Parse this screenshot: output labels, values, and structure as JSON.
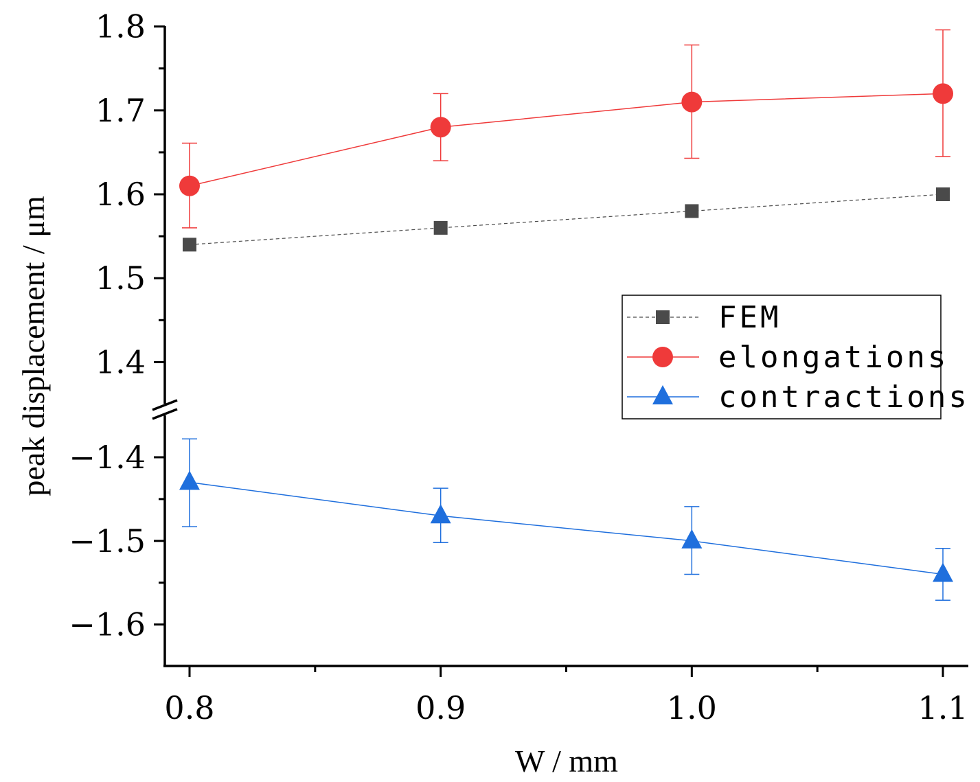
{
  "chart_data": {
    "type": "line",
    "xlabel": "W / mm",
    "ylabel": "peak displacement / μm",
    "x": [
      0.8,
      0.9,
      1.0,
      1.1
    ],
    "x_tick_labels": [
      "0.8",
      "0.9",
      "1.0",
      "1.1"
    ],
    "xlim": [
      0.79,
      1.11
    ],
    "y_axis_break": true,
    "y_upper": {
      "range": [
        1.355,
        1.8
      ],
      "ticks": [
        1.4,
        1.5,
        1.6,
        1.7,
        1.8
      ],
      "tick_labels": [
        "1.4",
        "1.5",
        "1.6",
        "1.7",
        "1.8"
      ]
    },
    "y_lower": {
      "range": [
        -1.65,
        -1.36
      ],
      "ticks": [
        -1.6,
        -1.5,
        -1.4
      ],
      "tick_labels": [
        "−1.6",
        "−1.5",
        "−1.4"
      ]
    },
    "series": [
      {
        "name": "FEM",
        "segment": "upper",
        "marker": "square",
        "line": "dashed",
        "color": "#4a4a4a",
        "values": [
          1.54,
          1.56,
          1.58,
          1.6
        ]
      },
      {
        "name": "elongations",
        "segment": "upper",
        "marker": "circle",
        "line": "solid",
        "color": "#ef3a3a",
        "values": [
          1.61,
          1.68,
          1.71,
          1.72
        ],
        "err_low": [
          1.56,
          1.64,
          1.643,
          1.645
        ],
        "err_high": [
          1.661,
          1.72,
          1.778,
          1.796
        ]
      },
      {
        "name": "contractions",
        "segment": "lower",
        "marker": "triangle",
        "line": "solid",
        "color": "#1f6fdd",
        "values": [
          -1.43,
          -1.47,
          -1.5,
          -1.54
        ],
        "err_low": [
          -1.483,
          -1.502,
          -1.54,
          -1.571
        ],
        "err_high": [
          -1.378,
          -1.437,
          -1.459,
          -1.509
        ]
      }
    ],
    "legend": {
      "position": "right-middle",
      "entries": [
        "FEM",
        "elongations",
        "contractions"
      ]
    }
  }
}
